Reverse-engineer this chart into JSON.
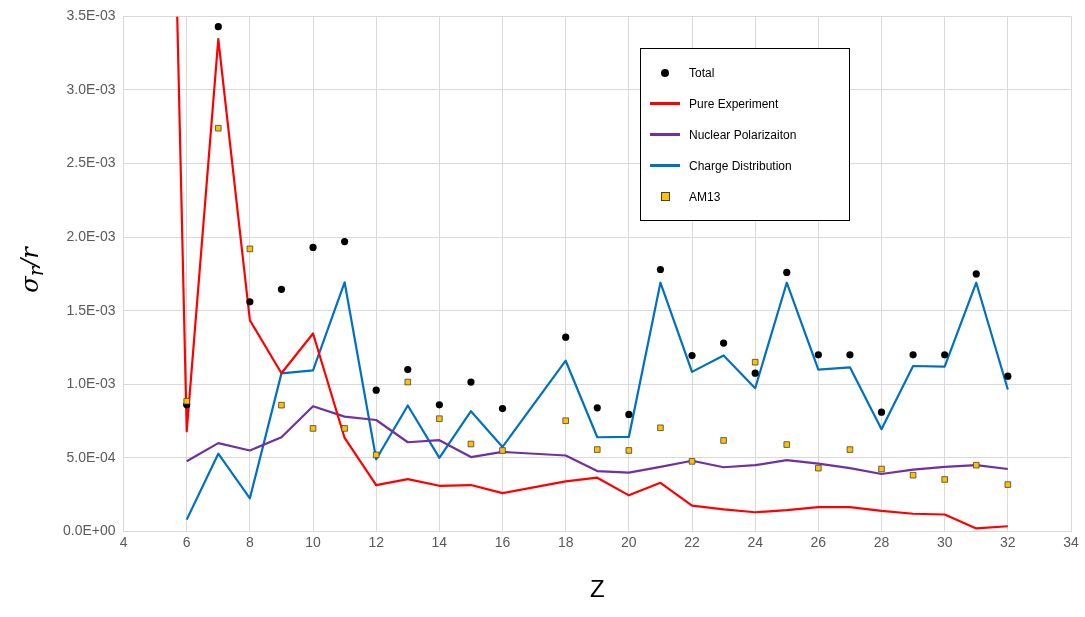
{
  "chart_data": {
    "type": "line",
    "xlabel": "Z",
    "ylabel": "σ$_{r}$/r",
    "x": [
      6,
      7,
      8,
      9,
      10,
      11,
      12,
      13,
      14,
      15,
      16,
      18,
      19,
      20,
      21,
      22,
      23,
      24,
      25,
      26,
      27,
      28,
      29,
      30,
      31,
      32
    ],
    "series": [
      {
        "name": "Total",
        "type": "scatter",
        "marker": "circle",
        "color": "#000000",
        "values": [
          0.00086,
          0.00343,
          0.00156,
          0.001645,
          0.00193,
          0.00197,
          0.00096,
          0.0011,
          0.00086,
          0.001015,
          0.000835,
          0.00132,
          0.00084,
          0.000795,
          0.00178,
          0.001195,
          0.00128,
          0.001075,
          0.00176,
          0.0012,
          0.0012,
          0.00081,
          0.0012,
          0.0012,
          0.00175,
          0.001055
        ]
      },
      {
        "name": "Pure Experiment",
        "type": "line",
        "marker": "none",
        "color": "#ff0000",
        "x": [
          5.7,
          6,
          7,
          8,
          9,
          10,
          11,
          12,
          13,
          14,
          15,
          16,
          18,
          19,
          20,
          21,
          22,
          23,
          24,
          25,
          26,
          27,
          28,
          29,
          30,
          31,
          32
        ],
        "values": [
          0.0035,
          0.00068,
          0.003345,
          0.001435,
          0.001075,
          0.001345,
          0.000635,
          0.000315,
          0.000355,
          0.00031,
          0.000315,
          0.00026,
          0.00034,
          0.000365,
          0.000245,
          0.00033,
          0.000175,
          0.00015,
          0.00013,
          0.000145,
          0.000165,
          0.000165,
          0.00014,
          0.00012,
          0.000115,
          2e-05,
          3.5e-05
        ]
      },
      {
        "name": "Nuclear Polarizaiton",
        "type": "line",
        "marker": "none",
        "color": "#7030a0",
        "values": [
          0.000477,
          0.0006,
          0.00055,
          0.00064,
          0.00085,
          0.00078,
          0.000757,
          0.000606,
          0.00062,
          0.000505,
          0.00054,
          0.000516,
          0.00041,
          0.0004,
          0.000438,
          0.00048,
          0.000436,
          0.00045,
          0.000484,
          0.00046,
          0.00043,
          0.00039,
          0.00042,
          0.000438,
          0.00045,
          0.000424
        ]
      },
      {
        "name": "Charge Distribution",
        "type": "line",
        "marker": "none",
        "color": "#0070c0",
        "values": [
          8e-05,
          0.000528,
          0.000225,
          0.001074,
          0.001094,
          0.001693,
          0.00049,
          0.000856,
          0.0005,
          0.000817,
          0.000574,
          0.00116,
          0.00064,
          0.000642,
          0.00169,
          0.001084,
          0.001196,
          0.000973,
          0.00169,
          0.0011,
          0.001115,
          0.000695,
          0.001124,
          0.00112,
          0.00169,
          0.000964
        ]
      },
      {
        "name": "AM13",
        "type": "scatter",
        "marker": "square",
        "color": "#ffc000",
        "values": [
          0.000885,
          0.00274,
          0.00192,
          0.000858,
          0.0007,
          0.0007,
          0.00052,
          0.001015,
          0.000766,
          0.000594,
          0.00055,
          0.000752,
          0.000556,
          0.00055,
          0.000704,
          0.000476,
          0.000618,
          0.00115,
          0.00059,
          0.00043,
          0.000556,
          0.000424,
          0.000382,
          0.000353,
          0.00045,
          0.000318
        ]
      }
    ],
    "xlim": [
      4,
      34
    ],
    "xticks": [
      4,
      6,
      8,
      10,
      12,
      14,
      16,
      18,
      20,
      22,
      24,
      26,
      28,
      30,
      32,
      34
    ],
    "ylim": [
      0,
      0.0035
    ],
    "yticks": [
      {
        "value": 0,
        "label": "0.0E+00"
      },
      {
        "value": 0.0005,
        "label": "5.0E-04"
      },
      {
        "value": 0.001,
        "label": "1.0E-03"
      },
      {
        "value": 0.0015,
        "label": "1.5E-03"
      },
      {
        "value": 0.002,
        "label": "2.0E-03"
      },
      {
        "value": 0.0025,
        "label": "2.5E-03"
      },
      {
        "value": 0.003,
        "label": "3.0E-03"
      },
      {
        "value": 0.0035,
        "label": "3.5E-03"
      }
    ],
    "grid": true,
    "legend": "top right"
  }
}
